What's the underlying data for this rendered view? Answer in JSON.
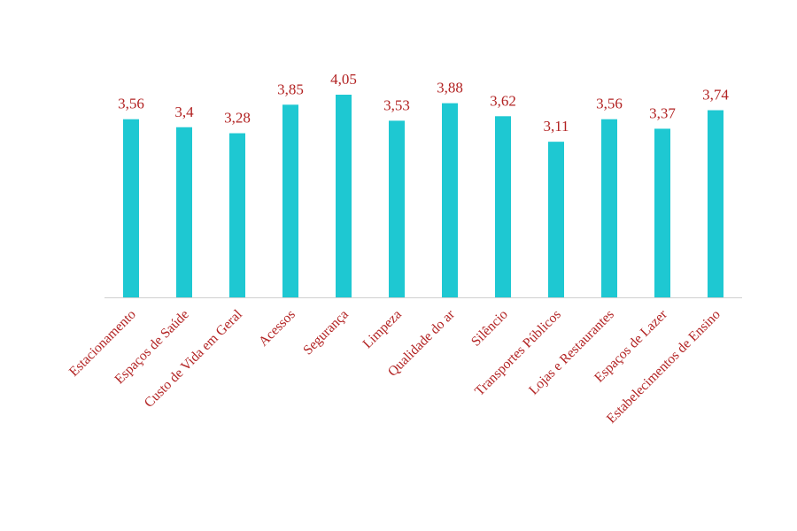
{
  "chart_data": {
    "type": "bar",
    "categories": [
      "Estacionamento",
      "Espaços de Saúde",
      "Custo de Vida em Geral",
      "Acessos",
      "Segurança",
      "Limpeza",
      "Qualidade do ar",
      "Silêncio",
      "Transportes Públicos",
      "Lojas e Restaurantes",
      "Espaços de Lazer",
      "Estabelecimentos de Ensino"
    ],
    "values": [
      3.56,
      3.4,
      3.28,
      3.85,
      4.05,
      3.53,
      3.88,
      3.62,
      3.11,
      3.56,
      3.37,
      3.74
    ],
    "value_labels": [
      "3,56",
      "3,4",
      "3,28",
      "3,85",
      "4,05",
      "3,53",
      "3,88",
      "3,62",
      "3,11",
      "3,56",
      "3,37",
      "3,74"
    ],
    "title": "",
    "xlabel": "",
    "ylabel": "",
    "ylim": [
      0,
      4.05
    ],
    "grid": false,
    "legend": "none"
  },
  "colors": {
    "bar": "#1ec8d2",
    "label_text": "#b22222",
    "axis": "#d0d0d0"
  }
}
